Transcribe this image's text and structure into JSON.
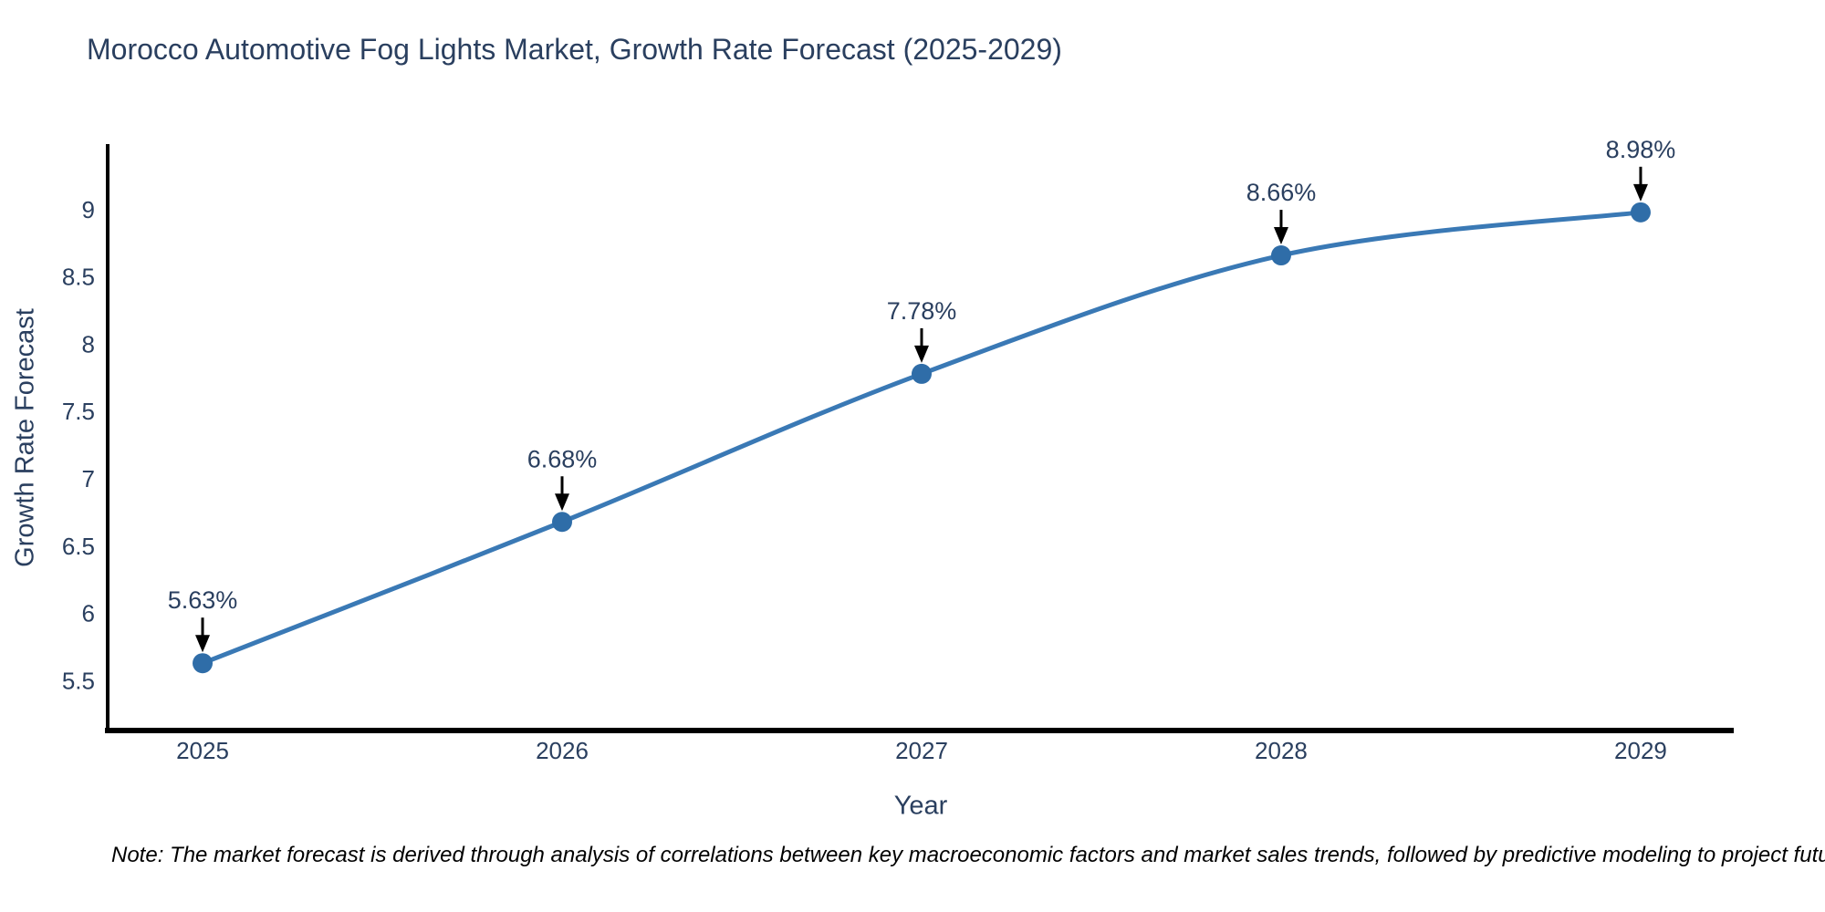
{
  "chart_data": {
    "type": "line",
    "title": "Morocco Automotive Fog Lights Market, Growth Rate Forecast (2025-2029)",
    "xlabel": "Year",
    "ylabel": "Growth Rate Forecast",
    "x": [
      2025,
      2026,
      2027,
      2028,
      2029
    ],
    "y": [
      5.63,
      6.68,
      7.78,
      8.66,
      8.98
    ],
    "point_labels": [
      "5.63%",
      "6.68%",
      "7.78%",
      "8.66%",
      "8.98%"
    ],
    "xticks": [
      "2025",
      "2026",
      "2027",
      "2028",
      "2029"
    ],
    "yticks": [
      5.5,
      6,
      6.5,
      7,
      7.5,
      8,
      8.5,
      9
    ],
    "ytick_labels": [
      "5.5",
      "6",
      "6.5",
      "7",
      "7.5",
      "8",
      "8.5",
      "9"
    ],
    "xlim": [
      2024.736,
      2029.259
    ],
    "ylim": [
      5.13,
      9.487
    ],
    "grid": false,
    "legend": "none",
    "line_color": "#3a79b5",
    "marker_color": "#2f6da8",
    "arrow_color": "#000000",
    "axis_color": "#000000",
    "text_color": "#2a3f5f"
  },
  "note": {
    "text": "Note: The market forecast is derived through analysis of correlations between key macroeconomic factors and market sales trends, followed by predictive modeling to project future sales"
  }
}
